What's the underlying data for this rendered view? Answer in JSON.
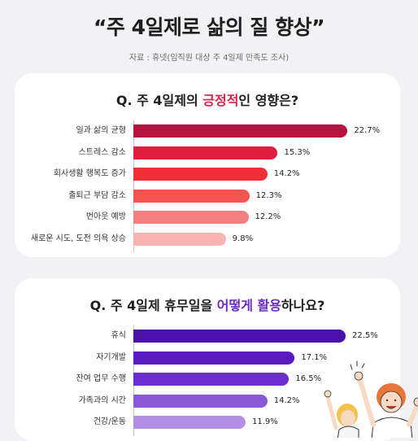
{
  "title": "“주 4일제로 삶의 질 향상”",
  "source": "자료 : 휴넷(임직원 대상 주 4일제 만족도 조사)",
  "chart_data": [
    {
      "type": "bar",
      "title_parts": [
        "Q. 주 4일제의 ",
        "긍정적",
        "인 영향은?"
      ],
      "categories": [
        "일과 삶의 균형",
        "스트레스 감소",
        "회사생활 행복도 증가",
        "출퇴근 부담 감소",
        "번아웃 예방",
        "새로운 시도, 도전 의욕 상승"
      ],
      "values": [
        22.7,
        15.3,
        14.2,
        12.3,
        12.2,
        9.8
      ],
      "value_labels": [
        "22.7%",
        "15.3%",
        "14.2%",
        "12.3%",
        "12.2%",
        "9.8%"
      ],
      "colors": [
        "#b5123e",
        "#e01d3f",
        "#f02e36",
        "#f4544f",
        "#f57f7e",
        "#f8b3b0"
      ],
      "xlim": [
        0,
        25
      ]
    },
    {
      "type": "bar",
      "title_parts": [
        "Q. 주 4일제 휴무일을 ",
        "어떻게 활용",
        "하나요?"
      ],
      "categories": [
        "휴식",
        "자기개발",
        "잔여 업무 수행",
        "가족과의 시간",
        "건강/운동"
      ],
      "values": [
        22.5,
        17.1,
        16.5,
        14.2,
        11.9
      ],
      "value_labels": [
        "22.5%",
        "17.1%",
        "16.5%",
        "14.2%",
        "11.9%"
      ],
      "colors": [
        "#4a10a8",
        "#5a1bc0",
        "#6b2cd0",
        "#8a58d6",
        "#b48ee6"
      ],
      "xlim": [
        0,
        25
      ]
    }
  ],
  "illustration": {
    "icon": "cheering-people-illustration"
  }
}
